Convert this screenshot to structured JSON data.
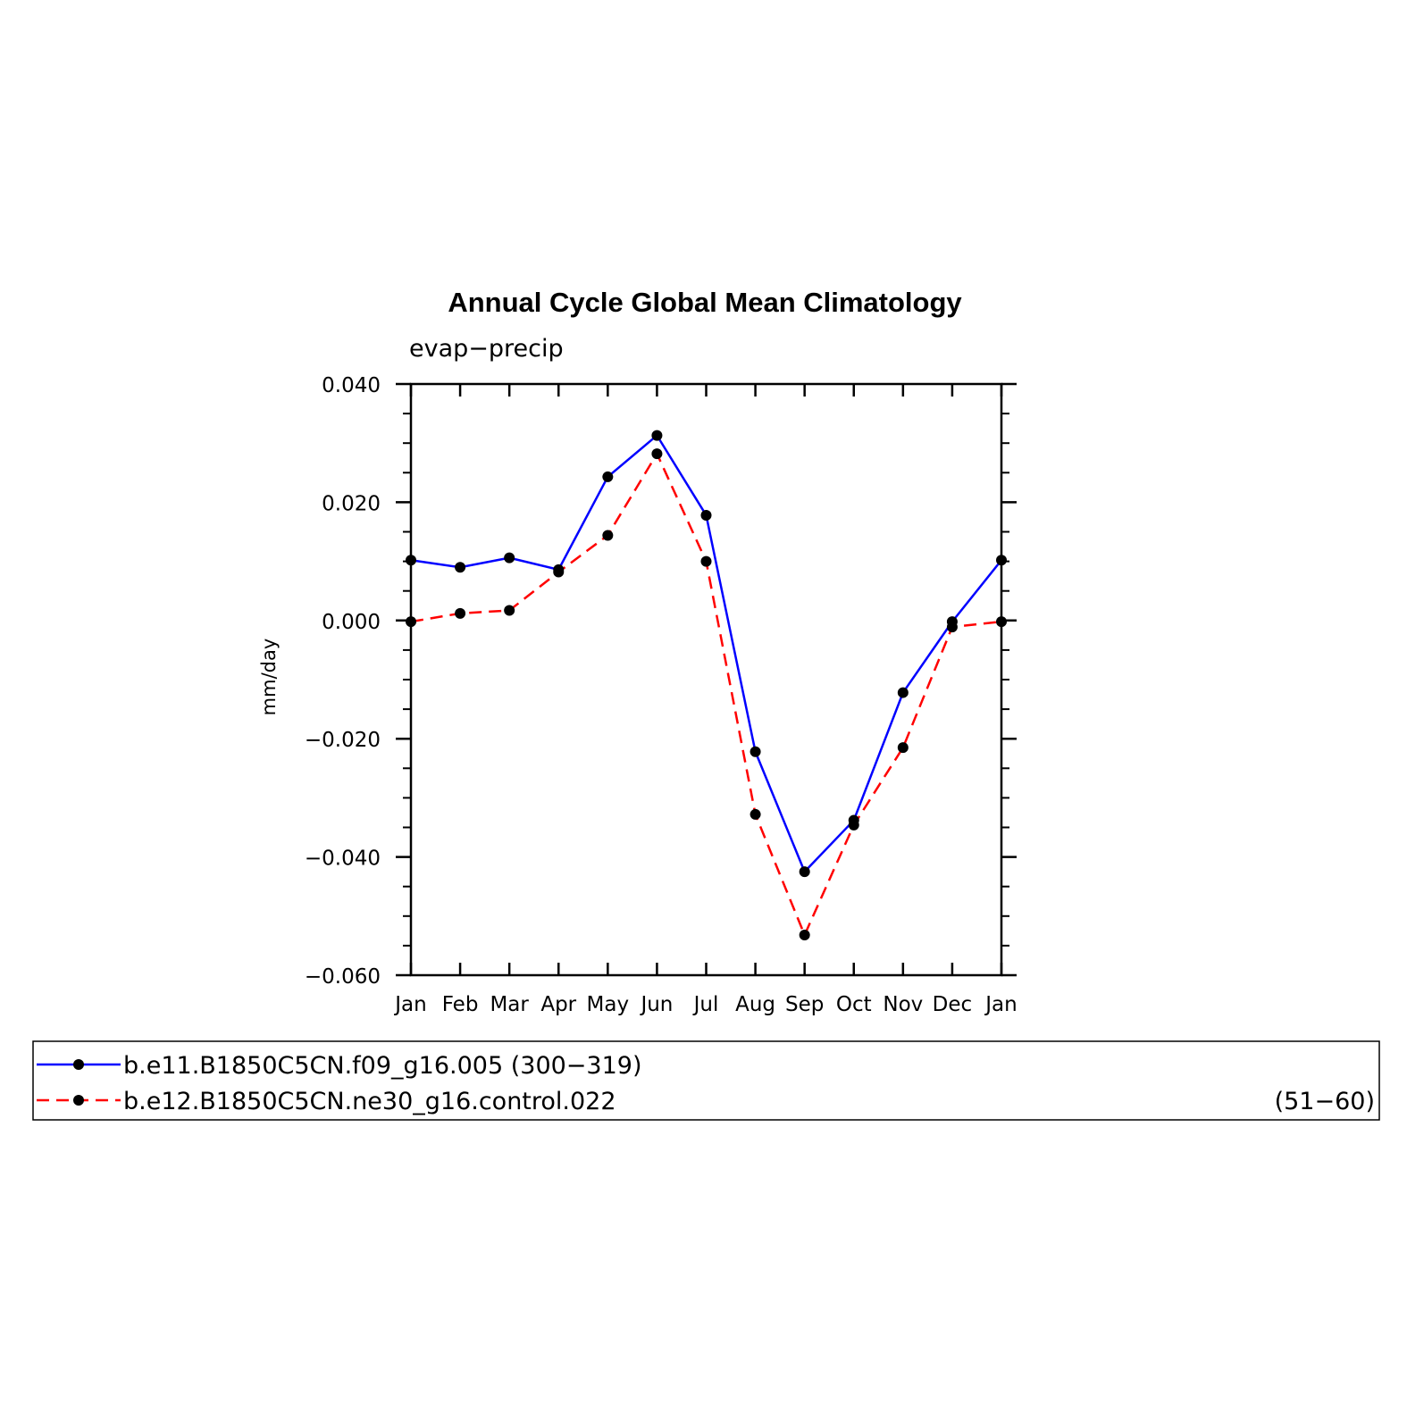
{
  "chart_data": {
    "type": "line",
    "title": "Annual Cycle Global Mean Climatology",
    "subtitle": "evap−precip",
    "xlabel": "",
    "ylabel": "mm/day",
    "categories": [
      "Jan",
      "Feb",
      "Mar",
      "Apr",
      "May",
      "Jun",
      "Jul",
      "Aug",
      "Sep",
      "Oct",
      "Nov",
      "Dec",
      "Jan"
    ],
    "ylim": [
      -0.06,
      0.04
    ],
    "yticks": [
      0.04,
      0.02,
      0.0,
      -0.02,
      -0.04,
      -0.06
    ],
    "ytick_labels": [
      "0.040",
      "0.020",
      "0.000",
      "−0.020",
      "−0.040",
      "−0.060"
    ],
    "grid": false,
    "legend_position": "bottom",
    "series": [
      {
        "name": "b.e11.B1850C5CN.f09_g16.005 (300−319)",
        "color": "#0000ff",
        "dash": "solid",
        "values": [
          0.0102,
          0.009,
          0.0106,
          0.0086,
          0.0243,
          0.0313,
          0.0178,
          -0.0222,
          -0.0425,
          -0.0338,
          -0.0122,
          -0.0002,
          0.0102
        ]
      },
      {
        "name": "b.e12.B1850C5CN.ne30_g16.control.022",
        "name_suffix": "(51−60)",
        "color": "#ff0000",
        "dash": "dashed",
        "values": [
          -0.0002,
          0.0012,
          0.0017,
          0.0082,
          0.0144,
          0.0282,
          0.01,
          -0.0328,
          -0.0532,
          -0.0346,
          -0.0215,
          -0.0011,
          -0.0002
        ]
      }
    ]
  }
}
